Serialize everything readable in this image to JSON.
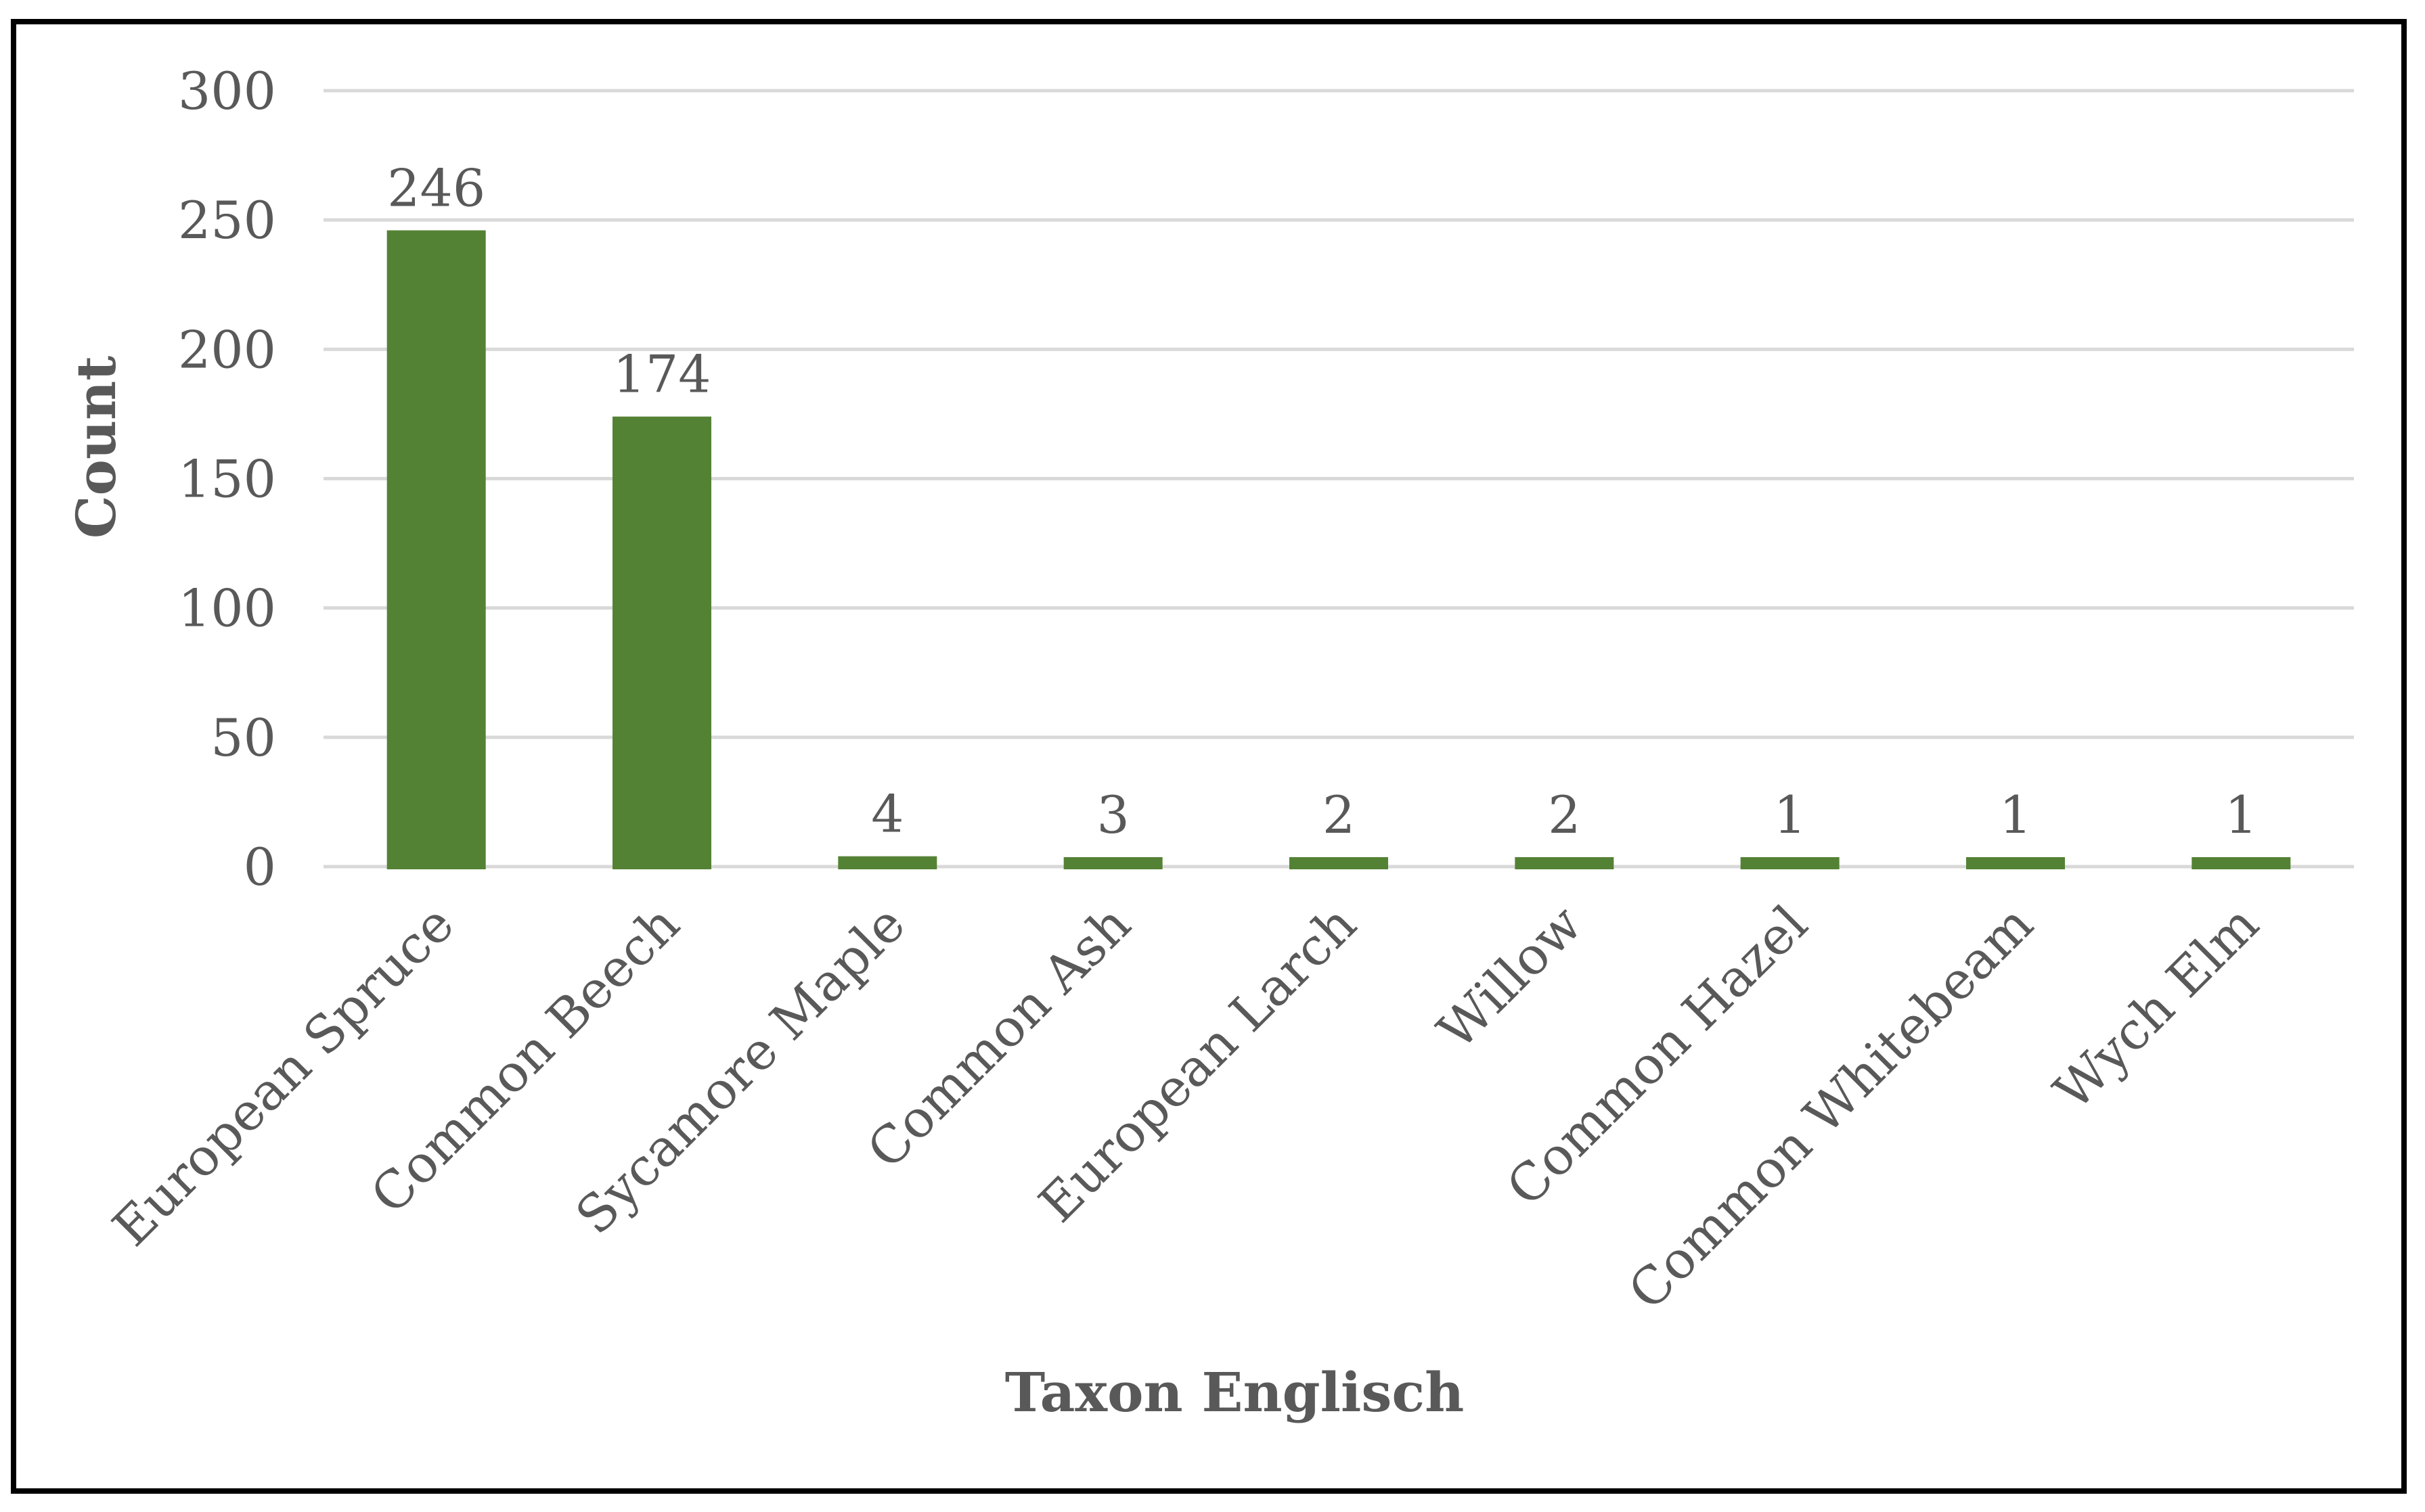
{
  "chart_data": {
    "type": "bar",
    "categories": [
      "European Spruce",
      "Common Beech",
      "Sycamore Maple",
      "Common Ash",
      "European Larch",
      "Willow",
      "Common Hazel",
      "Common Whitebeam",
      "Wych Elm"
    ],
    "values": [
      246,
      174,
      4,
      3,
      2,
      2,
      1,
      1,
      1
    ],
    "data_labels": [
      "246",
      "174",
      "4",
      "3",
      "2",
      "2",
      "1",
      "1",
      "1"
    ],
    "xlabel": "Taxon Englisch",
    "ylabel": "Count",
    "ylim": [
      0,
      300
    ],
    "yticks": [
      0,
      50,
      100,
      150,
      200,
      250,
      300
    ],
    "grid": true,
    "legend": "none",
    "colors": {
      "bar": "#548235",
      "grid": "#d9d9d9",
      "text": "#595959",
      "frame": "#000000"
    }
  }
}
